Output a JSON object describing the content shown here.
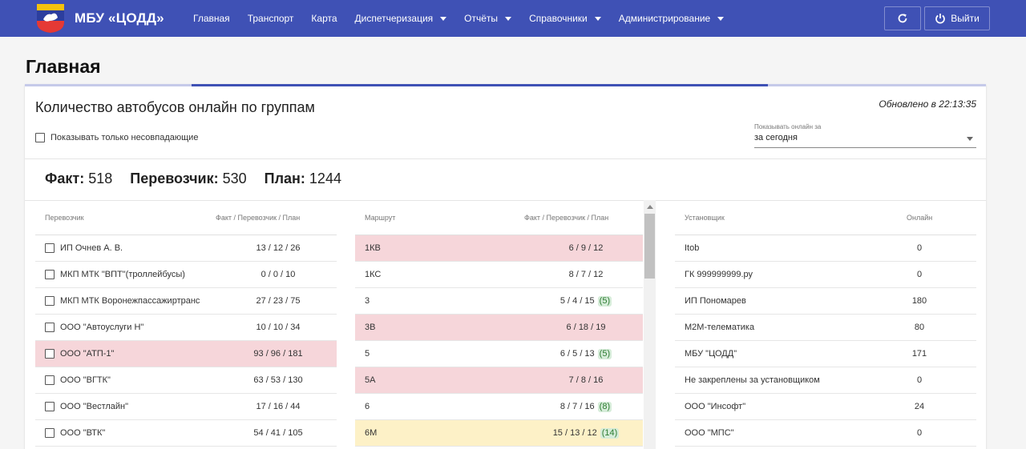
{
  "brand": {
    "name": "МБУ «ЦОДД»",
    "logo_colors": {
      "blue": "#2c3e9e",
      "yellow": "#f4c20d",
      "red": "#e53935",
      "white": "#ffffff"
    }
  },
  "nav": {
    "items": [
      {
        "label": "Главная",
        "dropdown": false
      },
      {
        "label": "Транспорт",
        "dropdown": false
      },
      {
        "label": "Карта",
        "dropdown": false
      },
      {
        "label": "Диспетчеризация",
        "dropdown": true
      },
      {
        "label": "Отчёты",
        "dropdown": true
      },
      {
        "label": "Справочники",
        "dropdown": true
      },
      {
        "label": "Администрирование",
        "dropdown": true
      }
    ],
    "refresh_icon": "refresh-icon",
    "logout_icon": "power-icon",
    "logout_label": "Выйти"
  },
  "page": {
    "title": "Главная"
  },
  "card": {
    "title": "Количество автобусов онлайн по группам",
    "updated": "Обновлено в 22:13:35",
    "mismatch_checkbox_label": "Показывать только несовпадающие",
    "period_label": "Показывать онлайн за",
    "period_value": "за сегодня",
    "progress_fraction": 0.6,
    "totals": [
      {
        "label": "Факт:",
        "value": "518"
      },
      {
        "label": "Перевозчик:",
        "value": "530"
      },
      {
        "label": "План:",
        "value": "1244"
      }
    ]
  },
  "colors": {
    "primary": "#3f51b5",
    "row_red": "#f6d6da",
    "row_yellow": "#fdf1c7",
    "badge_green": "#d6ecd9"
  },
  "carriers": {
    "headers": [
      "Перевозчик",
      "Факт / Перевозчик / План"
    ],
    "rows": [
      {
        "name": "ИП Очнев А. В.",
        "value": "13 / 12 / 26",
        "status": ""
      },
      {
        "name": "МКП МТК \"ВПТ\"(троллейбусы)",
        "value": "0 / 0 / 10",
        "status": ""
      },
      {
        "name": "МКП МТК Воронежпассажиртранс",
        "value": "27 / 23 / 75",
        "status": ""
      },
      {
        "name": "ООО \"Автоуслуги Н\"",
        "value": "10 / 10 / 34",
        "status": ""
      },
      {
        "name": "ООО \"АТП-1\"",
        "value": "93 / 96 / 181",
        "status": "red"
      },
      {
        "name": "ООО \"ВГТК\"",
        "value": "63 / 53 / 130",
        "status": ""
      },
      {
        "name": "ООО \"Вестлайн\"",
        "value": "17 / 16 / 44",
        "status": ""
      },
      {
        "name": "ООО \"ВТК\"",
        "value": "54 / 41 / 105",
        "status": ""
      }
    ]
  },
  "routes": {
    "headers": [
      "Маршрут",
      "Факт / Перевозчик / План"
    ],
    "rows": [
      {
        "name": "1КВ",
        "value": "6 / 9 / 12",
        "badge": "",
        "status": "red"
      },
      {
        "name": "1КС",
        "value": "8 / 7 / 12",
        "badge": "",
        "status": ""
      },
      {
        "name": "3",
        "value": "5 / 4 / 15",
        "badge": "(5)",
        "status": ""
      },
      {
        "name": "3В",
        "value": "6 / 18 / 19",
        "badge": "",
        "status": "red"
      },
      {
        "name": "5",
        "value": "6 / 5 / 13",
        "badge": "(5)",
        "status": ""
      },
      {
        "name": "5А",
        "value": "7 / 8 / 16",
        "badge": "",
        "status": "red"
      },
      {
        "name": "6",
        "value": "8 / 7 / 16",
        "badge": "(8)",
        "status": ""
      },
      {
        "name": "6М",
        "value": "15 / 13 / 12",
        "badge": "(14)",
        "status": "yellow"
      }
    ]
  },
  "installers": {
    "headers": [
      "Установщик",
      "Онлайн"
    ],
    "rows": [
      {
        "name": "Itob",
        "value": "0"
      },
      {
        "name": "ГК 999999999.ру",
        "value": "0"
      },
      {
        "name": "ИП Пономарев",
        "value": "180"
      },
      {
        "name": "M2M-телематика",
        "value": "80"
      },
      {
        "name": "МБУ \"ЦОДД\"",
        "value": "171"
      },
      {
        "name": "Не закреплены за установщиком",
        "value": "0"
      },
      {
        "name": "ООО \"Инсофт\"",
        "value": "24"
      },
      {
        "name": "ООО \"МПС\"",
        "value": "0"
      }
    ]
  }
}
